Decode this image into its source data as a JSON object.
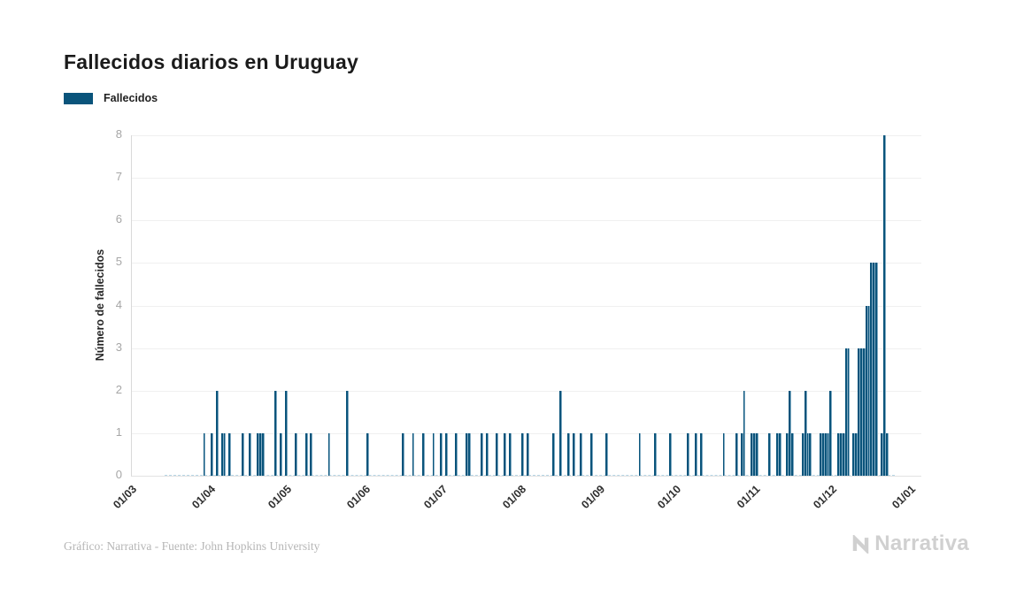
{
  "header": {
    "title": "Fallecidos diarios en Uruguay"
  },
  "legend": {
    "label": "Fallecidos",
    "swatch_color": "#0a547b"
  },
  "footer": {
    "credit": "Gráfico: Narrativa - Fuente: John Hopkins University",
    "brand": "Narrativa"
  },
  "colors": {
    "bar": "#0a547b",
    "grid": "#f0f0f0",
    "axis": "#d9d9d9",
    "tick_text": "#a6a6a6",
    "title_text": "#1b1b1b",
    "zero_dash": "#b7d6e6",
    "credit_text": "#b6b6b6",
    "brand_text": "#d0d0d0"
  },
  "chart_data": {
    "type": "bar",
    "title": "Fallecidos diarios en Uruguay",
    "series_name": "Fallecidos",
    "xlabel": "",
    "ylabel": "Número de fallecidos",
    "ylim": [
      0,
      8
    ],
    "yticks": [
      0,
      1,
      2,
      3,
      4,
      5,
      6,
      7,
      8
    ],
    "grid": "horizontal",
    "legend_position": "top-left",
    "bar_color": "#0a547b",
    "x_unit": "days since first tick (01/03)",
    "x_domain_days": 310,
    "xticks": [
      {
        "day": 0,
        "label": "01/03"
      },
      {
        "day": 31,
        "label": "01/04"
      },
      {
        "day": 61,
        "label": "01/05"
      },
      {
        "day": 92,
        "label": "01/06"
      },
      {
        "day": 122,
        "label": "01/07"
      },
      {
        "day": 153,
        "label": "01/08"
      },
      {
        "day": 184,
        "label": "01/09"
      },
      {
        "day": 214,
        "label": "01/10"
      },
      {
        "day": 245,
        "label": "01/11"
      },
      {
        "day": 275,
        "label": "01/12"
      },
      {
        "day": 306,
        "label": "01/01"
      }
    ],
    "bars_day_value": [
      [
        28,
        1
      ],
      [
        31,
        1
      ],
      [
        33,
        2
      ],
      [
        35,
        1
      ],
      [
        36,
        1
      ],
      [
        38,
        1
      ],
      [
        43,
        1
      ],
      [
        46,
        1
      ],
      [
        49,
        1
      ],
      [
        50,
        1
      ],
      [
        51,
        1
      ],
      [
        56,
        2
      ],
      [
        58,
        1
      ],
      [
        60,
        2
      ],
      [
        64,
        1
      ],
      [
        68,
        1
      ],
      [
        70,
        1
      ],
      [
        77,
        1
      ],
      [
        84,
        2
      ],
      [
        92,
        1
      ],
      [
        106,
        1
      ],
      [
        110,
        1
      ],
      [
        114,
        1
      ],
      [
        118,
        1
      ],
      [
        121,
        1
      ],
      [
        123,
        1
      ],
      [
        127,
        1
      ],
      [
        131,
        1
      ],
      [
        132,
        1
      ],
      [
        137,
        1
      ],
      [
        139,
        1
      ],
      [
        143,
        1
      ],
      [
        146,
        1
      ],
      [
        148,
        1
      ],
      [
        153,
        1
      ],
      [
        155,
        1
      ],
      [
        165,
        1
      ],
      [
        168,
        2
      ],
      [
        171,
        1
      ],
      [
        173,
        1
      ],
      [
        176,
        1
      ],
      [
        180,
        1
      ],
      [
        186,
        1
      ],
      [
        199,
        1
      ],
      [
        205,
        1
      ],
      [
        211,
        1
      ],
      [
        218,
        1
      ],
      [
        221,
        1
      ],
      [
        223,
        1
      ],
      [
        232,
        1
      ],
      [
        237,
        1
      ],
      [
        239,
        1
      ],
      [
        240,
        2
      ],
      [
        243,
        1
      ],
      [
        244,
        1
      ],
      [
        245,
        1
      ],
      [
        250,
        1
      ],
      [
        253,
        1
      ],
      [
        254,
        1
      ],
      [
        257,
        1
      ],
      [
        258,
        2
      ],
      [
        259,
        1
      ],
      [
        263,
        1
      ],
      [
        264,
        2
      ],
      [
        265,
        1
      ],
      [
        266,
        1
      ],
      [
        270,
        1
      ],
      [
        271,
        1
      ],
      [
        272,
        1
      ],
      [
        273,
        1
      ],
      [
        274,
        2
      ],
      [
        277,
        1
      ],
      [
        278,
        1
      ],
      [
        279,
        1
      ],
      [
        280,
        3
      ],
      [
        281,
        3
      ],
      [
        283,
        1
      ],
      [
        284,
        1
      ],
      [
        285,
        3
      ],
      [
        286,
        3
      ],
      [
        287,
        3
      ],
      [
        288,
        4
      ],
      [
        289,
        4
      ],
      [
        290,
        5
      ],
      [
        291,
        5
      ],
      [
        292,
        5
      ],
      [
        294,
        1
      ],
      [
        295,
        8
      ],
      [
        296,
        1
      ]
    ]
  }
}
